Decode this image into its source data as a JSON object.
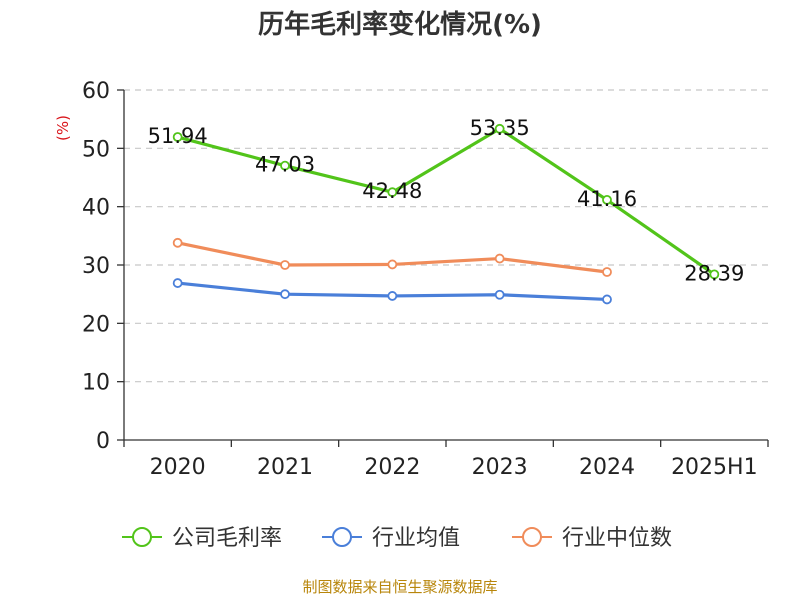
{
  "chart_data": {
    "type": "line",
    "title": "历年毛利率变化情况(%)",
    "unit_label": "(%)",
    "categories": [
      "2020",
      "2021",
      "2022",
      "2023",
      "2024",
      "2025H1"
    ],
    "y_ticks": [
      "0",
      "10",
      "20",
      "30",
      "40",
      "50",
      "60"
    ],
    "ylim": [
      0,
      60
    ],
    "grid": true,
    "legend_position": "bottom",
    "series": [
      {
        "name": "公司毛利率",
        "color": "#52c41a",
        "values": [
          51.94,
          47.03,
          42.48,
          53.35,
          41.16,
          28.39
        ],
        "labels": [
          "51.94",
          "47.03",
          "42.48",
          "53.35",
          "41.16",
          "28.39"
        ]
      },
      {
        "name": "行业均值",
        "color": "#4a7fd9",
        "values": [
          26.9,
          25.0,
          24.7,
          24.9,
          24.1,
          null
        ]
      },
      {
        "name": "行业中位数",
        "color": "#f08c5a",
        "values": [
          33.8,
          30.0,
          30.1,
          31.1,
          28.8,
          null
        ]
      }
    ],
    "source": "制图数据来自恒生聚源数据库"
  }
}
